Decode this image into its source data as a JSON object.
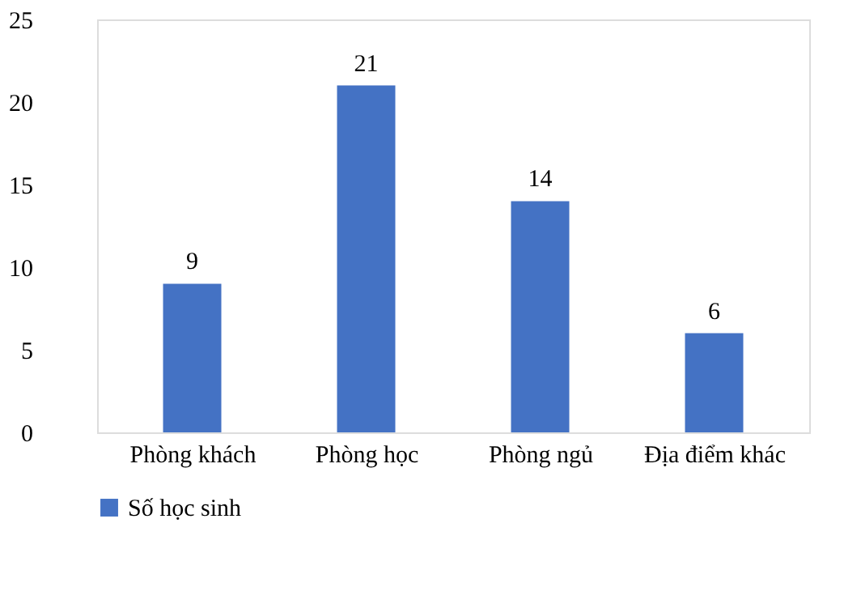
{
  "chart_data": {
    "type": "bar",
    "categories": [
      "Phòng khách",
      "Phòng học",
      "Phòng ngủ",
      "Địa điểm khác"
    ],
    "series": [
      {
        "name": "Số học sinh",
        "color": "#4472c4",
        "values": [
          9,
          21,
          14,
          6
        ]
      }
    ],
    "ylim": [
      0,
      25
    ],
    "yticks": [
      0,
      5,
      10,
      15,
      20,
      25
    ],
    "data_labels": true,
    "grid": false,
    "legend": "bottom"
  }
}
